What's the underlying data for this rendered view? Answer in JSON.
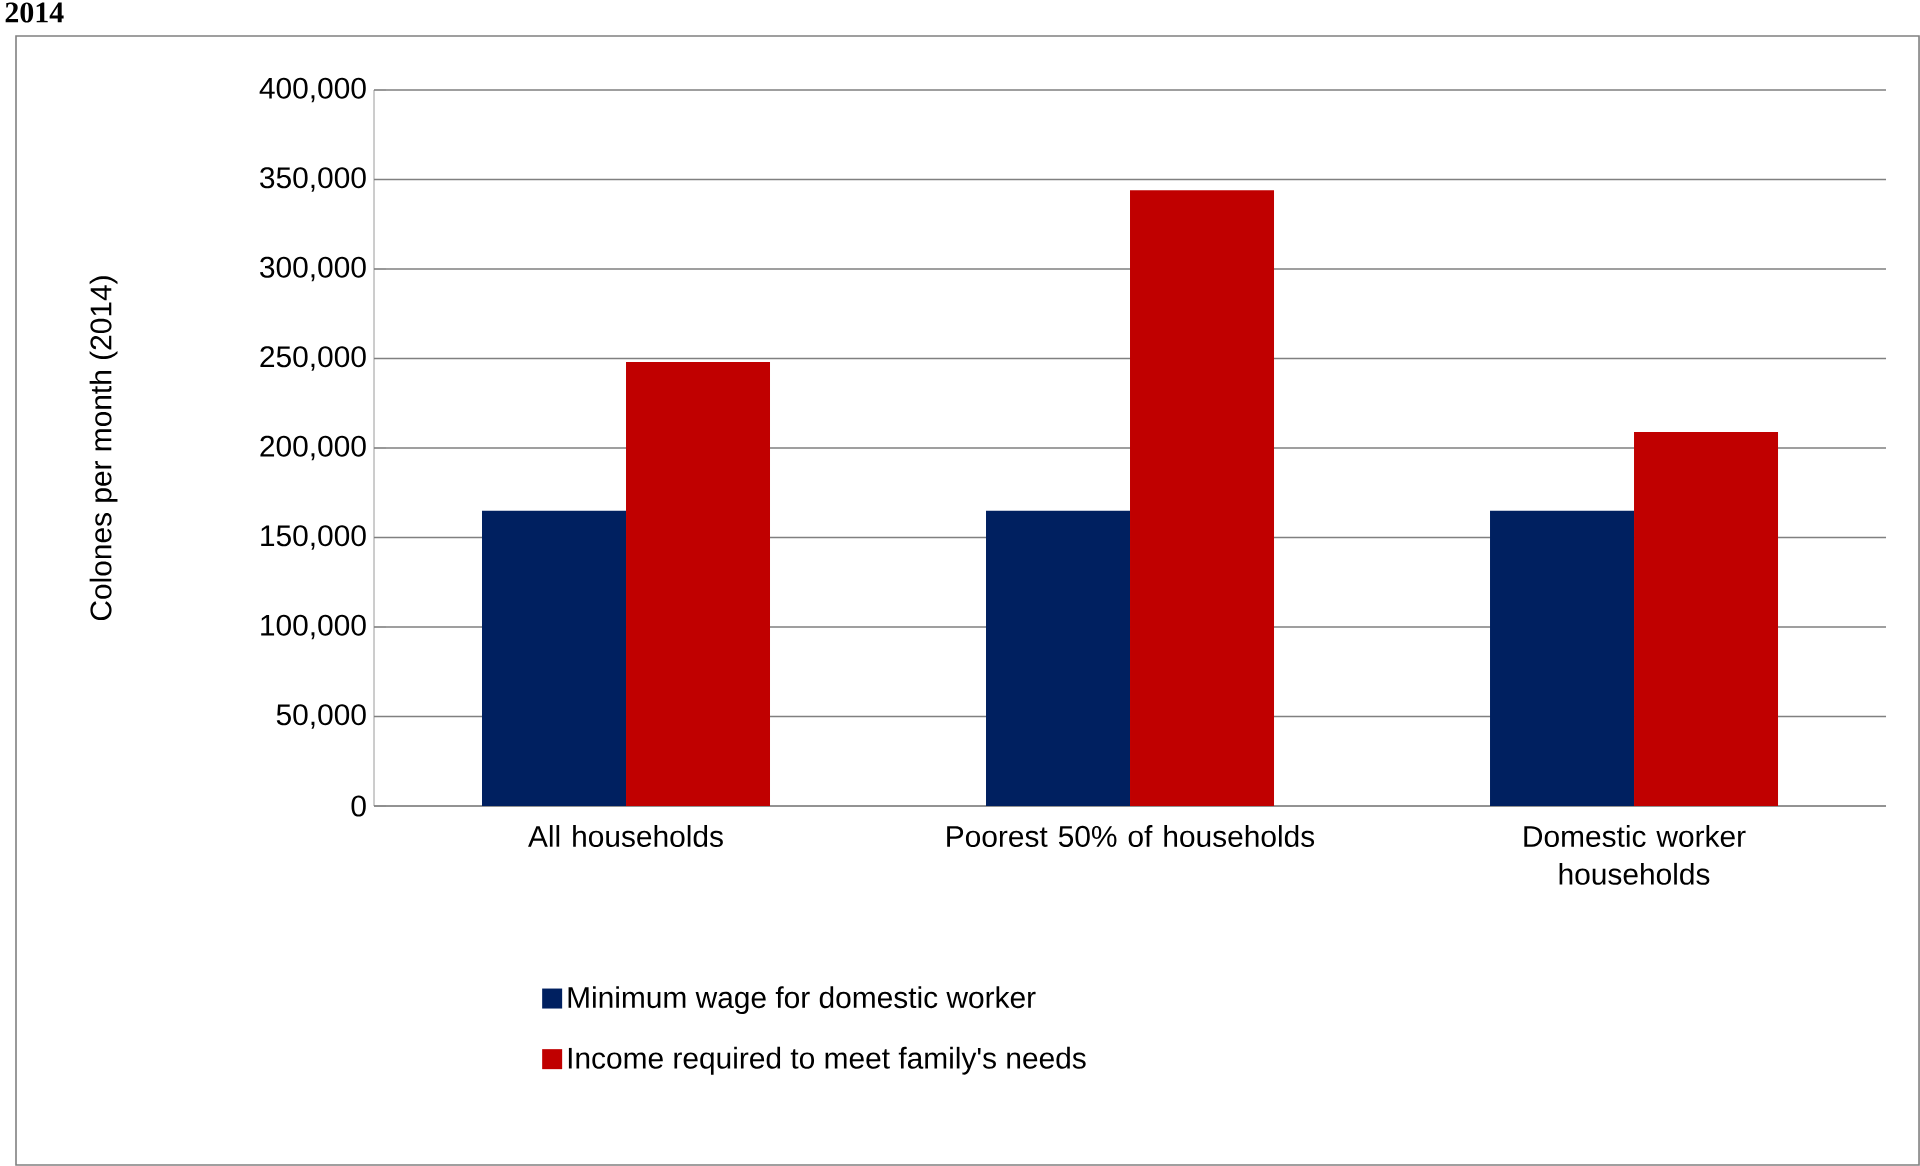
{
  "chart_data": {
    "type": "bar",
    "title": "2014",
    "ylabel": "Colones per month (2014)",
    "categories": [
      "All households",
      "Poorest 50% of households",
      "Domestic worker households"
    ],
    "series": [
      {
        "name": "Minimum wage for domestic worker",
        "color": "#002060",
        "values": [
          165000,
          165000,
          165000
        ]
      },
      {
        "name": "Income required to meet family's needs",
        "color": "#c00000",
        "values": [
          248000,
          344000,
          209000
        ]
      }
    ],
    "ylim": [
      0,
      400000
    ],
    "yticks": [
      {
        "value": 0,
        "label": "0"
      },
      {
        "value": 50000,
        "label": "50,000"
      },
      {
        "value": 100000,
        "label": "100,000"
      },
      {
        "value": 150000,
        "label": "150,000"
      },
      {
        "value": 200000,
        "label": "200,000"
      },
      {
        "value": 250000,
        "label": "250,000"
      },
      {
        "value": 300000,
        "label": "300,000"
      },
      {
        "value": 350000,
        "label": "350,000"
      },
      {
        "value": 400000,
        "label": "400,000"
      }
    ],
    "grid": "y",
    "legend": "bottom"
  }
}
